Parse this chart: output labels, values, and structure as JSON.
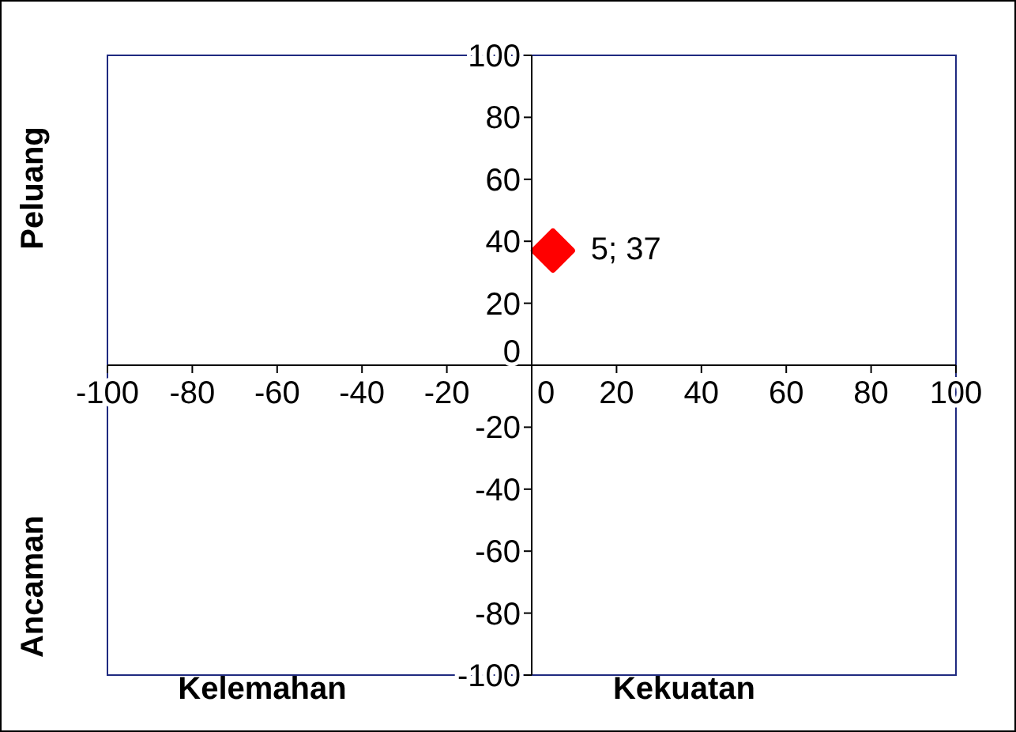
{
  "chart_data": {
    "type": "scatter",
    "x": [
      5
    ],
    "values": [
      37
    ],
    "color": "#ff0000",
    "marker": "diamond",
    "value_labels": [
      "5; 37"
    ],
    "xlim": [
      -100,
      100
    ],
    "xticks": [
      -100,
      -80,
      -60,
      -40,
      -20,
      0,
      20,
      40,
      60,
      80,
      100
    ],
    "ylim": [
      -100,
      100
    ],
    "yticks": [
      -100,
      -80,
      -60,
      -40,
      -20,
      0,
      20,
      40,
      60,
      80,
      100
    ],
    "annotations": [
      "Peluang",
      "Ancaman",
      "Kelemahan",
      "Kekuatan"
    ]
  }
}
